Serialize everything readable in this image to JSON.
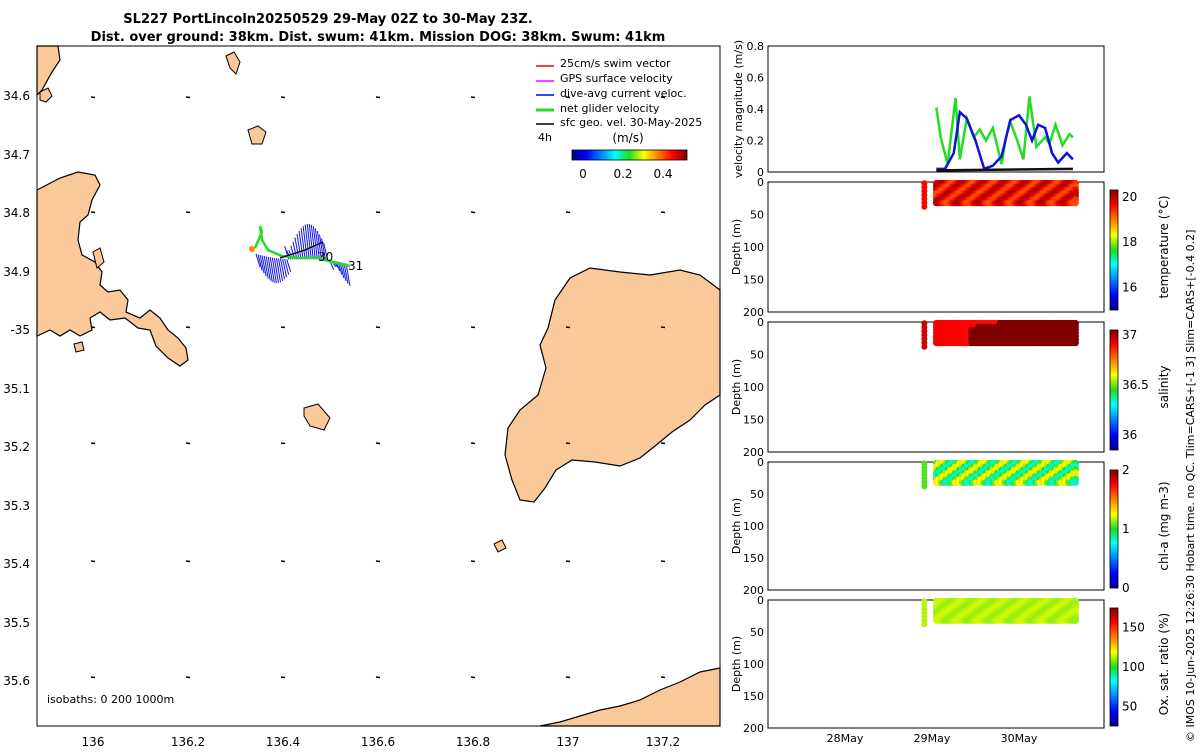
{
  "title_line1": "SL227 PortLincoln20250529 29-May 02Z to 30-May 23Z.",
  "title_line2": "Dist. over ground: 38km. Dist. swum: 41km. Mission DOG: 38km. Swum: 41km",
  "map": {
    "lon_ticks": [
      "136",
      "136.2",
      "136.4",
      "136.6",
      "136.8",
      "137",
      "137.2"
    ],
    "lat_ticks": [
      "34.6",
      "34.7",
      "34.8",
      "34.9",
      "-35",
      "35.1",
      "35.2",
      "35.3",
      "35.4",
      "35.5",
      "35.6"
    ],
    "legend": [
      {
        "label": "25cm/s swim vector",
        "color": "#ff0000"
      },
      {
        "label": "GPS surface velocity",
        "color": "#ff00ff"
      },
      {
        "label": "dive-avg current veloc.",
        "color": "#0000ff"
      },
      {
        "label": "net glider velocity",
        "color": "#00dd00"
      },
      {
        "label": "sfc geo. vel. 30-May-2025",
        "color": "#000000"
      }
    ],
    "legend_interval": "4h",
    "speed_colorbar": {
      "label": "(m/s)",
      "ticks": [
        "0",
        "0.2",
        "0.4"
      ]
    },
    "track_labels": [
      "30",
      "31"
    ],
    "isobaths_text": "isobaths: 0   200  1000m"
  },
  "chart_data": [
    {
      "type": "line",
      "ylabel": "velocity magnitude (m/s)",
      "ylim": [
        0,
        0.8
      ],
      "yticks": [
        "0",
        "0.2",
        "0.4",
        "0.6",
        "0.8"
      ],
      "x_days": [
        0,
        1,
        2,
        3
      ],
      "series": [
        {
          "name": "net glider velocity",
          "color": "#22dd22",
          "x": [
            1.05,
            1.1,
            1.18,
            1.27,
            1.32,
            1.4,
            1.48,
            1.55,
            1.62,
            1.7,
            1.8,
            1.85,
            1.9,
            1.98,
            2.05,
            2.12,
            2.2,
            2.3,
            2.35,
            2.42,
            2.5,
            2.58,
            2.62
          ],
          "y": [
            0.41,
            0.22,
            0.05,
            0.47,
            0.08,
            0.34,
            0.22,
            0.27,
            0.2,
            0.28,
            0.05,
            0.22,
            0.32,
            0.2,
            0.08,
            0.48,
            0.16,
            0.22,
            0.18,
            0.3,
            0.17,
            0.24,
            0.22
          ]
        },
        {
          "name": "dive-avg current veloc.",
          "color": "#1010dd",
          "x": [
            1.05,
            1.15,
            1.25,
            1.32,
            1.4,
            1.5,
            1.6,
            1.7,
            1.8,
            1.9,
            2.0,
            2.08,
            2.15,
            2.22,
            2.3,
            2.38,
            2.45,
            2.55,
            2.62
          ],
          "y": [
            0.02,
            0.02,
            0.12,
            0.38,
            0.34,
            0.2,
            0.02,
            0.04,
            0.1,
            0.33,
            0.36,
            0.3,
            0.2,
            0.3,
            0.28,
            0.12,
            0.06,
            0.12,
            0.08
          ]
        },
        {
          "name": "sfc geo. vel.",
          "color": "#111111",
          "x": [
            1.05,
            2.62
          ],
          "y": [
            0.01,
            0.02
          ]
        }
      ]
    },
    {
      "type": "heatmap",
      "ylabel": "Depth (m)",
      "yticks": [
        "0",
        "50",
        "100",
        "150",
        "200"
      ],
      "colorbar_label": "temperature (°C)",
      "colorbar_ticks": [
        "20",
        "18",
        "16"
      ],
      "vmin": 15,
      "vmax": 20.3,
      "range": [
        19.2,
        20.1
      ]
    },
    {
      "type": "heatmap",
      "ylabel": "Depth (m)",
      "yticks": [
        "0",
        "50",
        "100",
        "150",
        "200"
      ],
      "colorbar_label": "salinity",
      "colorbar_ticks": [
        "37",
        "36.5",
        "36"
      ],
      "vmin": 35.85,
      "vmax": 37.05,
      "range": [
        36.85,
        37.05
      ]
    },
    {
      "type": "heatmap",
      "ylabel": "Depth (m)",
      "yticks": [
        "0",
        "50",
        "100",
        "150",
        "200"
      ],
      "colorbar_label": "chl-a (mg m-3)",
      "colorbar_ticks": [
        "2",
        "1",
        "0"
      ],
      "vmin": 0,
      "vmax": 2,
      "range": [
        0.8,
        1.3
      ]
    },
    {
      "type": "heatmap",
      "ylabel": "Depth (m)",
      "yticks": [
        "0",
        "50",
        "100",
        "150",
        "200"
      ],
      "colorbar_label": "Ox. sat. ratio (%)",
      "colorbar_ticks": [
        "150",
        "100",
        "50"
      ],
      "vmin": 25,
      "vmax": 175,
      "range": [
        110,
        115
      ]
    }
  ],
  "time_axis": {
    "ticks": [
      "28May",
      "29May",
      "30May"
    ]
  },
  "footer": "© IMOS 10-Jun-2025 12:26:30 Hobart time. no QC. Tlim=CARS+[-1 3] Slim=CARS+[-0.4 0.2]"
}
